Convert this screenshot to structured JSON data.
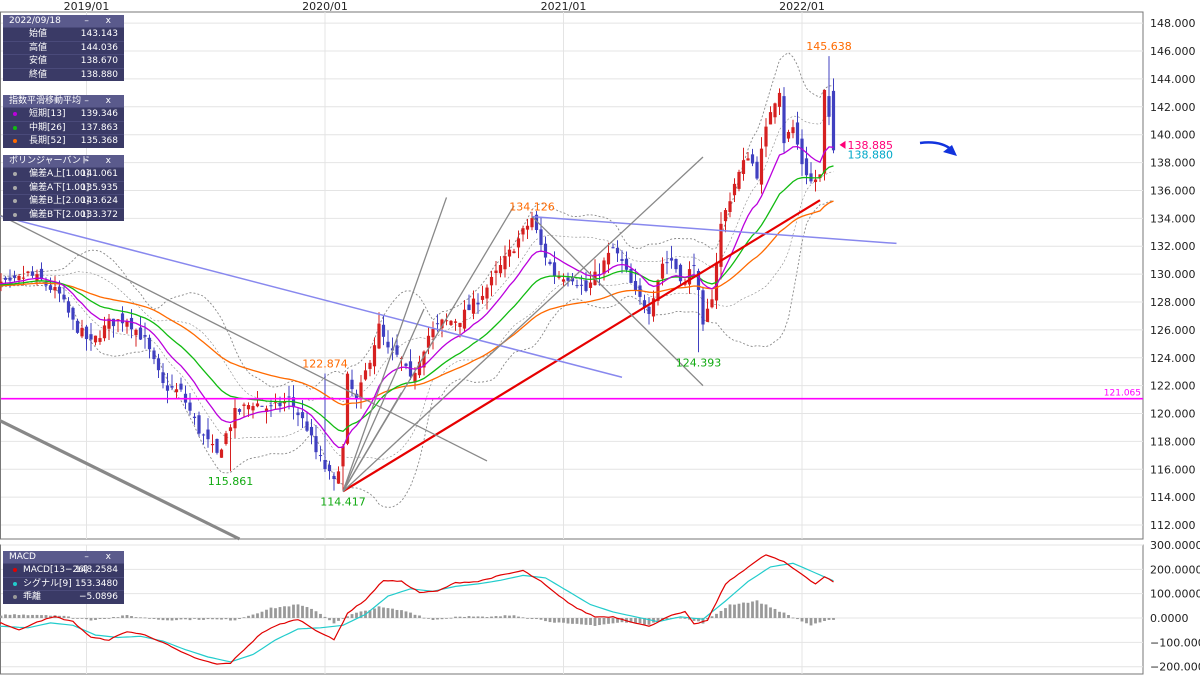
{
  "colors": {
    "candle_up": "#d62020",
    "candle_down": "#4040c0",
    "ema_short": "#bb00dd",
    "ema_mid": "#11bb11",
    "ema_long": "#ff6a00",
    "bollinger": "#888888",
    "hline": "#ff00ff",
    "trend_red": "#e60000",
    "trend_blue": "#8888ee",
    "fan": "#888888",
    "macd": "#e00000",
    "signal": "#22cccc",
    "hist": "#999999",
    "arrow": "#1133dd",
    "panel_bg": "#3a3a66",
    "panel_hdr": "#5a5a8c"
  },
  "ohlc_panel": {
    "title": "2022/09/18",
    "controls": "– x",
    "rows": [
      {
        "label": "始値",
        "value": "143.143"
      },
      {
        "label": "高値",
        "value": "144.036"
      },
      {
        "label": "安値",
        "value": "138.670"
      },
      {
        "label": "終値",
        "value": "138.880"
      }
    ]
  },
  "ema_panel": {
    "title": "指数平滑移動平均",
    "controls": "– x",
    "rows": [
      {
        "label": "短期[13]",
        "value": "139.346",
        "icon": "ema-short-icon"
      },
      {
        "label": "中期[26]",
        "value": "137.863",
        "icon": "ema-mid-icon"
      },
      {
        "label": "長期[52]",
        "value": "135.368",
        "icon": "ema-long-icon"
      }
    ]
  },
  "bb_panel": {
    "title": "ボリンジャーバンド",
    "controls": "– x",
    "rows": [
      {
        "label": "偏差A上[1.00]",
        "value": "141.061"
      },
      {
        "label": "偏差A下[1.00]",
        "value": "135.935"
      },
      {
        "label": "偏差B上[2.00]",
        "value": "143.624"
      },
      {
        "label": "偏差B下[2.00]",
        "value": "133.372"
      }
    ]
  },
  "macd_panel": {
    "title": "MACD",
    "controls": "– x",
    "rows": [
      {
        "label": "MACD[13−26]",
        "value": "148.2584",
        "icon": "macd-line-icon"
      },
      {
        "label": "シグナル[9]",
        "value": "153.3480",
        "icon": "signal-line-icon"
      },
      {
        "label": "乖離",
        "value": "−5.0896",
        "icon": "divergence-icon"
      }
    ]
  },
  "chart_data": [
    {
      "type": "candlestick",
      "period": "weekly",
      "x_ticks": [
        "2019/01",
        "2020/01",
        "2021/01",
        "2022/01"
      ],
      "x_tick_index": [
        23,
        76,
        129,
        182
      ],
      "y_ticks": [
        "148.000",
        "146.000",
        "144.000",
        "142.000",
        "140.000",
        "138.000",
        "136.000",
        "134.000",
        "132.000",
        "130.000",
        "128.000",
        "126.000",
        "124.000",
        "122.000",
        "120.000",
        "118.000",
        "116.000",
        "114.000",
        "112.000"
      ],
      "ylim": [
        111.0,
        148.8
      ],
      "grid": true,
      "close_anchors": [
        [
          0,
          129.5
        ],
        [
          6,
          129.2
        ],
        [
          10,
          130.0
        ],
        [
          13,
          129.5
        ],
        [
          17,
          128.5
        ],
        [
          20,
          126.5
        ],
        [
          24,
          125.0
        ],
        [
          28,
          126.5
        ],
        [
          32,
          126.8
        ],
        [
          36,
          125.2
        ],
        [
          40,
          122.0
        ],
        [
          44,
          121.5
        ],
        [
          48,
          118.8
        ],
        [
          52,
          117.0
        ],
        [
          56,
          120.0
        ],
        [
          60,
          120.8
        ],
        [
          64,
          120.3
        ],
        [
          68,
          121.0
        ],
        [
          72,
          119.0
        ],
        [
          74,
          117.2
        ],
        [
          78,
          115.0
        ],
        [
          80,
          117.5
        ],
        [
          81,
          122.5
        ],
        [
          83,
          120.8
        ],
        [
          86,
          124.0
        ],
        [
          88,
          126.2
        ],
        [
          90,
          124.5
        ],
        [
          93,
          123.8
        ],
        [
          95,
          122.3
        ],
        [
          97,
          124.0
        ],
        [
          99,
          125.6
        ],
        [
          102,
          126.5
        ],
        [
          106,
          126.8
        ],
        [
          110,
          128.2
        ],
        [
          113,
          129.5
        ],
        [
          116,
          131.0
        ],
        [
          119,
          132.5
        ],
        [
          122,
          134.0
        ],
        [
          124,
          132.0
        ],
        [
          127,
          130.0
        ],
        [
          131,
          129.8
        ],
        [
          134,
          128.8
        ],
        [
          137,
          130.3
        ],
        [
          140,
          131.8
        ],
        [
          142,
          130.8
        ],
        [
          145,
          128.5
        ],
        [
          148,
          127.5
        ],
        [
          151,
          130.8
        ],
        [
          153,
          131.0
        ],
        [
          156,
          129.3
        ],
        [
          158,
          131.0
        ],
        [
          160,
          126.0
        ],
        [
          162,
          128.5
        ],
        [
          164,
          133.5
        ],
        [
          167,
          136.5
        ],
        [
          170,
          138.6
        ],
        [
          172,
          137.2
        ],
        [
          175,
          141.8
        ],
        [
          177,
          143.3
        ],
        [
          178,
          139.6
        ],
        [
          180,
          140.5
        ],
        [
          182,
          138.0
        ],
        [
          184,
          136.6
        ],
        [
          186,
          137.0
        ],
        [
          187,
          143.0
        ],
        [
          189,
          138.88
        ]
      ],
      "extreme_labels": [
        {
          "text": "145.638",
          "index": 188,
          "price": 145.638,
          "color": "#ff6a00",
          "pos": "above"
        },
        {
          "text": "134.126",
          "index": 122,
          "price": 134.126,
          "color": "#ff6a00",
          "pos": "above"
        },
        {
          "text": "122.874",
          "index": 76,
          "price": 122.874,
          "color": "#ff6a00",
          "pos": "above"
        },
        {
          "text": "124.393",
          "index": 159,
          "price": 124.393,
          "color": "#11aa11",
          "pos": "below"
        },
        {
          "text": "115.861",
          "index": 55,
          "price": 115.861,
          "color": "#11aa11",
          "pos": "below"
        },
        {
          "text": "114.417",
          "index": 80,
          "price": 114.417,
          "color": "#11aa11",
          "pos": "below"
        }
      ],
      "hline": {
        "price": 121.065,
        "text": "121.065"
      },
      "price_labels": [
        {
          "text": "138.885",
          "price": 139.2,
          "color": "#ff0077",
          "marker": true
        },
        {
          "text": "138.880",
          "price": 138.5,
          "color": "#00a8c8",
          "marker": false
        }
      ],
      "trendlines": [
        {
          "name": "red-uptrend",
          "color": "#e60000",
          "width": 2.2,
          "from": [
            80,
            114.417
          ],
          "to": [
            186,
            135.3
          ]
        },
        {
          "name": "blue-downtrend",
          "color": "#8888ee",
          "width": 1.5,
          "from": [
            -12,
            135.5
          ],
          "to": [
            142,
            122.6
          ]
        },
        {
          "name": "blue-flat",
          "color": "#8888ee",
          "width": 1.5,
          "from": [
            122,
            134.126
          ],
          "to": [
            203,
            132.2
          ]
        },
        {
          "name": "gray-diagonal",
          "color": "#888888",
          "width": 1.3,
          "from": [
            -12,
            136.8
          ],
          "to": [
            112,
            116.6
          ]
        },
        {
          "name": "thick-channel",
          "color": "#888888",
          "width": 3.2,
          "from": [
            -12,
            122.0
          ],
          "to": [
            57,
            111.0
          ]
        },
        {
          "name": "fan-1",
          "color": "#888888",
          "width": 1.3,
          "from": [
            80,
            114.417
          ],
          "to": [
            103,
            135.5
          ]
        },
        {
          "name": "fan-2",
          "color": "#888888",
          "width": 1.3,
          "from": [
            80,
            114.417
          ],
          "to": [
            118,
            134.9
          ]
        },
        {
          "name": "fan-3",
          "color": "#888888",
          "width": 1.3,
          "from": [
            80,
            114.417
          ],
          "to": [
            160,
            138.4
          ]
        },
        {
          "name": "fan-4",
          "color": "#888888",
          "width": 1.3,
          "from": [
            80,
            114.417
          ],
          "to": [
            98,
            127.5
          ]
        },
        {
          "name": "fan-5",
          "color": "#888888",
          "width": 1.3,
          "from": [
            80,
            114.417
          ],
          "to": [
            93,
            121.5
          ]
        },
        {
          "name": "descending-fan",
          "color": "#888888",
          "width": 1.3,
          "from": [
            122,
            134.126
          ],
          "to": [
            160,
            122.0
          ]
        }
      ]
    },
    {
      "type": "line+bar",
      "name": "MACD",
      "y_ticks": [
        "300.0000",
        "200.0000",
        "100.0000",
        "0.0000",
        "−100.0000",
        "−200.0000"
      ],
      "ylim": [
        -230,
        300
      ],
      "macd_anchors": [
        [
          0,
          -45
        ],
        [
          4,
          -20
        ],
        [
          8,
          -50
        ],
        [
          12,
          -15
        ],
        [
          16,
          5
        ],
        [
          20,
          -15
        ],
        [
          24,
          -80
        ],
        [
          28,
          -90
        ],
        [
          32,
          -55
        ],
        [
          36,
          -70
        ],
        [
          40,
          -100
        ],
        [
          44,
          -140
        ],
        [
          48,
          -170
        ],
        [
          52,
          -190
        ],
        [
          55,
          -185
        ],
        [
          58,
          -130
        ],
        [
          62,
          -60
        ],
        [
          66,
          -25
        ],
        [
          70,
          -5
        ],
        [
          74,
          -50
        ],
        [
          78,
          -90
        ],
        [
          81,
          20
        ],
        [
          85,
          75
        ],
        [
          89,
          155
        ],
        [
          93,
          150
        ],
        [
          97,
          105
        ],
        [
          101,
          110
        ],
        [
          105,
          145
        ],
        [
          110,
          150
        ],
        [
          115,
          175
        ],
        [
          120,
          195
        ],
        [
          124,
          150
        ],
        [
          128,
          90
        ],
        [
          132,
          40
        ],
        [
          136,
          5
        ],
        [
          140,
          5
        ],
        [
          144,
          -15
        ],
        [
          148,
          -35
        ],
        [
          152,
          5
        ],
        [
          156,
          25
        ],
        [
          158,
          -25
        ],
        [
          161,
          -10
        ],
        [
          165,
          140
        ],
        [
          170,
          210
        ],
        [
          174,
          260
        ],
        [
          178,
          230
        ],
        [
          182,
          180
        ],
        [
          185,
          140
        ],
        [
          187,
          170
        ],
        [
          189,
          148
        ]
      ],
      "signal_anchors": [
        [
          0,
          -30
        ],
        [
          5,
          -35
        ],
        [
          10,
          -40
        ],
        [
          15,
          -20
        ],
        [
          20,
          -30
        ],
        [
          25,
          -70
        ],
        [
          30,
          -80
        ],
        [
          35,
          -75
        ],
        [
          40,
          -95
        ],
        [
          45,
          -130
        ],
        [
          50,
          -160
        ],
        [
          55,
          -180
        ],
        [
          60,
          -150
        ],
        [
          65,
          -90
        ],
        [
          70,
          -45
        ],
        [
          75,
          -40
        ],
        [
          80,
          -30
        ],
        [
          85,
          15
        ],
        [
          90,
          90
        ],
        [
          95,
          120
        ],
        [
          100,
          110
        ],
        [
          105,
          130
        ],
        [
          110,
          140
        ],
        [
          115,
          155
        ],
        [
          120,
          175
        ],
        [
          125,
          165
        ],
        [
          130,
          110
        ],
        [
          135,
          55
        ],
        [
          140,
          25
        ],
        [
          145,
          5
        ],
        [
          150,
          -15
        ],
        [
          155,
          5
        ],
        [
          160,
          -5
        ],
        [
          165,
          70
        ],
        [
          170,
          150
        ],
        [
          175,
          210
        ],
        [
          180,
          225
        ],
        [
          185,
          185
        ],
        [
          189,
          153
        ]
      ],
      "hist_anchors": [
        [
          0,
          10
        ],
        [
          8,
          15
        ],
        [
          16,
          12
        ],
        [
          24,
          -8
        ],
        [
          32,
          10
        ],
        [
          40,
          -8
        ],
        [
          48,
          -5
        ],
        [
          56,
          -8
        ],
        [
          64,
          40
        ],
        [
          70,
          55
        ],
        [
          74,
          30
        ],
        [
          78,
          -20
        ],
        [
          82,
          15
        ],
        [
          88,
          45
        ],
        [
          94,
          28
        ],
        [
          100,
          -8
        ],
        [
          106,
          8
        ],
        [
          112,
          3
        ],
        [
          118,
          12
        ],
        [
          124,
          -8
        ],
        [
          130,
          -25
        ],
        [
          136,
          -30
        ],
        [
          142,
          -18
        ],
        [
          148,
          -25
        ],
        [
          154,
          6
        ],
        [
          160,
          -20
        ],
        [
          166,
          55
        ],
        [
          172,
          70
        ],
        [
          178,
          20
        ],
        [
          184,
          -30
        ],
        [
          189,
          -5
        ]
      ]
    }
  ]
}
